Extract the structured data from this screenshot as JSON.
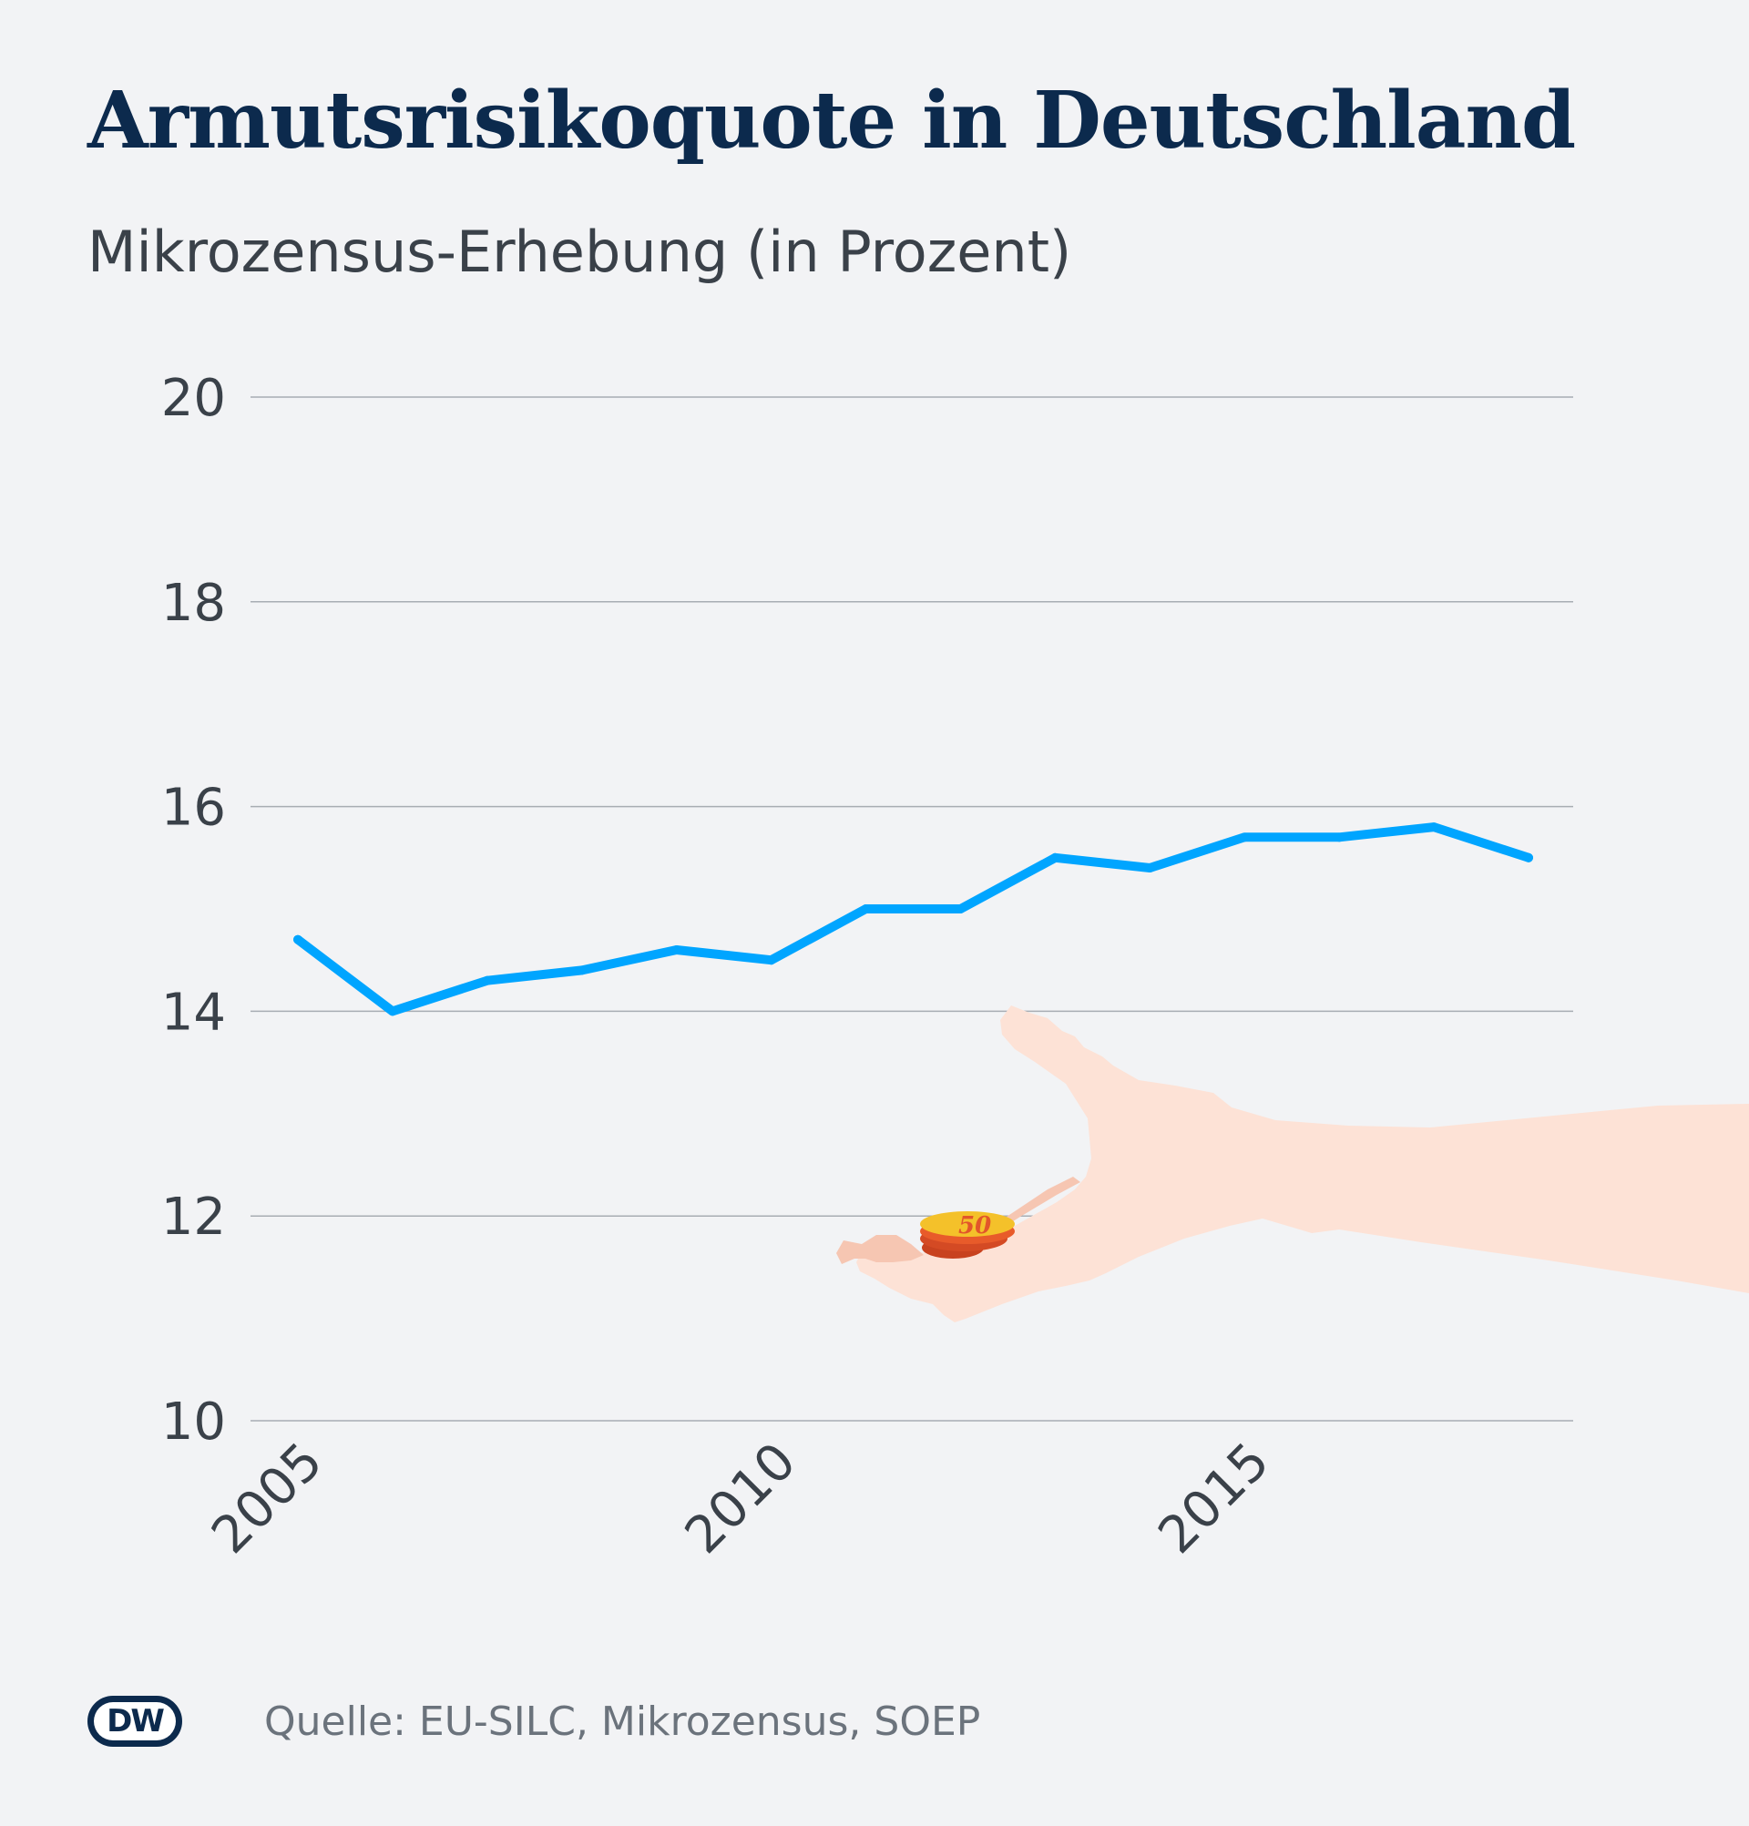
{
  "title": "Armutsrisikoquote in Deutschland",
  "subtitle": "Mikrozensus-Erhebung (in Prozent)",
  "source": "Quelle: EU-SILC, Mikrozensus, SOEP",
  "logo_text": "DW",
  "colors": {
    "background": "#f2f3f5",
    "title": "#0c2a4d",
    "line": "#00a5ff",
    "grid": "#a8adb3",
    "text": "#3a4149"
  },
  "illustration": {
    "icon": "hand-with-coins-icon",
    "coin_label": "50"
  },
  "chart_data": {
    "type": "line",
    "title": "Armutsrisikoquote in Deutschland",
    "subtitle": "Mikrozensus-Erhebung (in Prozent)",
    "xlabel": "",
    "ylabel": "",
    "ylim": [
      10,
      20
    ],
    "yticks": [
      10,
      12,
      14,
      16,
      18,
      20
    ],
    "xlim": [
      2005,
      2018
    ],
    "xticks": [
      "2005",
      "2010",
      "2015"
    ],
    "grid": true,
    "legend": "none",
    "series": [
      {
        "x": [
          2005,
          2006,
          2007,
          2008,
          2009,
          2010,
          2011,
          2012,
          2013,
          2014,
          2015,
          2016,
          2017,
          2018
        ],
        "values": [
          14.7,
          14.0,
          14.3,
          14.4,
          14.6,
          14.5,
          15.0,
          15.0,
          15.5,
          15.4,
          15.7,
          15.7,
          15.8,
          15.5
        ]
      }
    ]
  }
}
